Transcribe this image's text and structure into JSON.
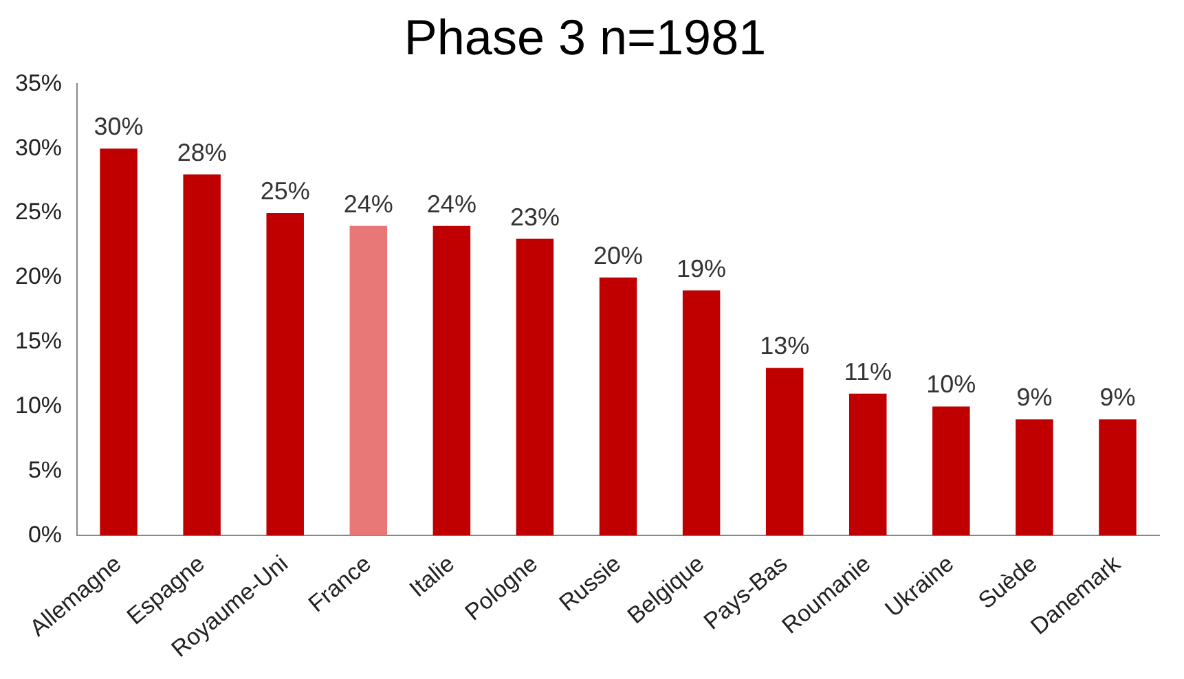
{
  "chart_data": {
    "type": "bar",
    "title": "Phase 3 n=1981",
    "categories": [
      "Allemagne",
      "Espagne",
      "Royaume-Uni",
      "France",
      "Italie",
      "Pologne",
      "Russie",
      "Belgique",
      "Pays-Bas",
      "Roumanie",
      "Ukraine",
      "Suède",
      "Danemark"
    ],
    "values": [
      30,
      28,
      25,
      24,
      24,
      23,
      20,
      19,
      13,
      11,
      10,
      9,
      9
    ],
    "value_labels": [
      "30%",
      "28%",
      "25%",
      "24%",
      "24%",
      "23%",
      "20%",
      "19%",
      "13%",
      "11%",
      "10%",
      "9%",
      "9%"
    ],
    "colors": [
      "#c00000",
      "#c00000",
      "#c00000",
      "#e87878",
      "#c00000",
      "#c00000",
      "#c00000",
      "#c00000",
      "#c00000",
      "#c00000",
      "#c00000",
      "#c00000",
      "#c00000"
    ],
    "ylim": [
      0,
      35
    ],
    "yticks": [
      {
        "value": 0,
        "label": "0%"
      },
      {
        "value": 5,
        "label": "5%"
      },
      {
        "value": 10,
        "label": "10%"
      },
      {
        "value": 15,
        "label": "15%"
      },
      {
        "value": 20,
        "label": "20%"
      },
      {
        "value": 25,
        "label": "25%"
      },
      {
        "value": 30,
        "label": "30%"
      },
      {
        "value": 35,
        "label": "35%"
      }
    ],
    "grid": false,
    "legend": false
  }
}
